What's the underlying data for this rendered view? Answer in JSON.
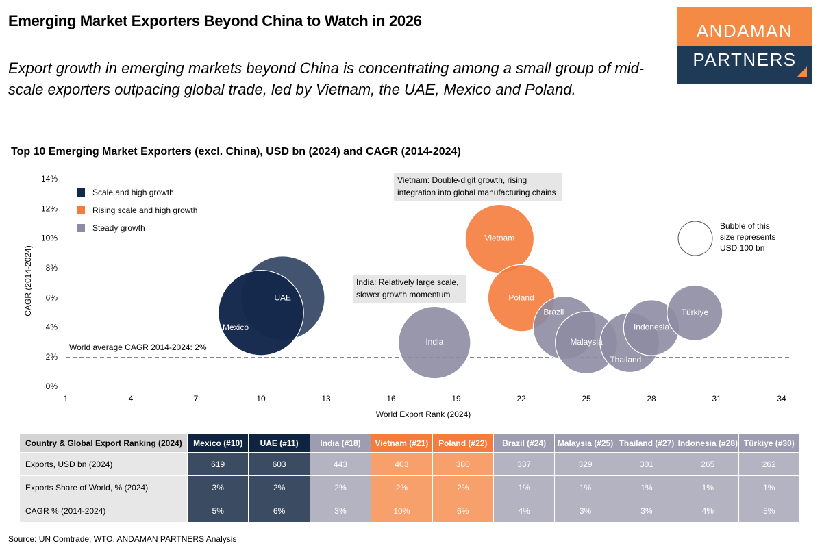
{
  "header": {
    "title": "Emerging Market Exporters Beyond China to Watch in 2026",
    "subtitle": "Export growth in emerging markets beyond China is concentrating among a small group of mid-scale exporters outpacing global trade, led by Vietnam, the UAE, Mexico and Poland."
  },
  "logo": {
    "top": "ANDAMAN",
    "bottom": "PARTNERS"
  },
  "chart_data": {
    "type": "bubble",
    "title": "Top 10 Emerging Market Exporters (excl. China), USD bn (2024) and CAGR (2014-2024)",
    "x_label": "World Export Rank (2024)",
    "y_label": "CAGR (2014-2024)",
    "xlim": [
      1,
      34
    ],
    "xticks": [
      1,
      4,
      7,
      10,
      13,
      16,
      19,
      22,
      25,
      28,
      31,
      34
    ],
    "ylim": [
      0,
      14
    ],
    "yticks": [
      {
        "value": 0,
        "label": "0%"
      },
      {
        "value": 2,
        "label": "2%"
      },
      {
        "value": 4,
        "label": "4%"
      },
      {
        "value": 6,
        "label": "6%"
      },
      {
        "value": 8,
        "label": "8%"
      },
      {
        "value": 10,
        "label": "10%"
      },
      {
        "value": 12,
        "label": "12%"
      },
      {
        "value": 14,
        "label": "14%"
      }
    ],
    "grid": false,
    "legend": "top-left",
    "series": [
      {
        "name": "Scale and high growth",
        "color": "#13294b",
        "labels": [
          "UAE",
          "Mexico"
        ],
        "x": [
          11,
          10
        ],
        "values": [
          6,
          5
        ],
        "sizes": [
          603,
          619
        ]
      },
      {
        "name": "Rising scale and high growth",
        "color": "#f47c3c",
        "labels": [
          "Vietnam",
          "Poland"
        ],
        "x": [
          21,
          22
        ],
        "values": [
          10,
          6
        ],
        "sizes": [
          403,
          380
        ]
      },
      {
        "name": "Steady growth",
        "color": "#8d8ca2",
        "labels": [
          "India",
          "Brazil",
          "Malaysia",
          "Thailand",
          "Indonesia",
          "Türkiye"
        ],
        "x": [
          18,
          24,
          25,
          27,
          28,
          30
        ],
        "values": [
          3,
          4,
          3,
          3,
          4,
          5
        ],
        "sizes": [
          443,
          337,
          329,
          301,
          265,
          262
        ]
      }
    ],
    "reference_line": {
      "value": 2,
      "label": "World average CAGR 2014-2024: 2%"
    },
    "size_legend": {
      "value": 100,
      "lines": [
        "Bubble of this",
        "size represents",
        "USD 100 bn"
      ]
    },
    "annotations": [
      {
        "lines": [
          "Vietnam: Double-digit growth, rising",
          "integration into global manufacturing chains"
        ]
      },
      {
        "lines": [
          "India: Relatively large scale,",
          "slower growth momentum"
        ]
      }
    ]
  },
  "table": {
    "header": [
      "Country & Global Export Ranking (2024)",
      "Mexico (#10)",
      "UAE (#11)",
      "India (#18)",
      "Vietnam (#21)",
      "Poland (#22)",
      "Brazil (#24)",
      "Malaysia (#25)",
      "Thailand (#27)",
      "Indonesia (#28)",
      "Türkiye (#30)"
    ],
    "rows": [
      [
        "Exports, USD bn (2024)",
        "619",
        "603",
        "443",
        "403",
        "380",
        "337",
        "329",
        "301",
        "265",
        "262"
      ],
      [
        "Exports Share of World, % (2024)",
        "3%",
        "2%",
        "2%",
        "2%",
        "2%",
        "1%",
        "1%",
        "1%",
        "1%",
        "1%"
      ],
      [
        "CAGR % (2014-2024)",
        "5%",
        "6%",
        "3%",
        "10%",
        "6%",
        "4%",
        "3%",
        "3%",
        "4%",
        "5%"
      ]
    ]
  },
  "source": "Source: UN Comtrade, WTO, ANDAMAN PARTNERS Analysis"
}
